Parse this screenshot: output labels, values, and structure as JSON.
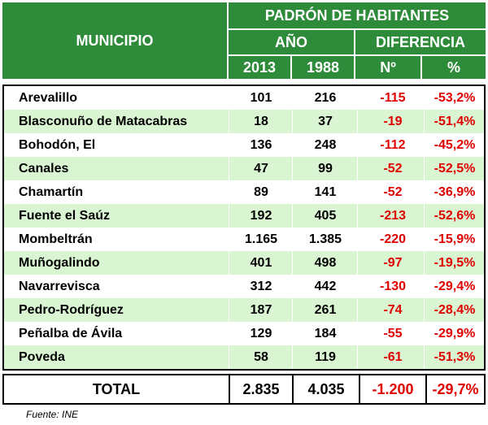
{
  "header": {
    "municipio": "MUNICIPIO",
    "padron": "PADRÓN DE HABITANTES",
    "anio": "AÑO",
    "diferencia": "DIFERENCIA",
    "y2013": "2013",
    "y1988": "1988",
    "num": "Nº",
    "pct": "%"
  },
  "rows": [
    {
      "name": "Arevalillo",
      "v2013": "101",
      "v1988": "216",
      "diff": "-115",
      "pct": "-53,2%"
    },
    {
      "name": "Blasconuño de Matacabras",
      "v2013": "18",
      "v1988": "37",
      "diff": "-19",
      "pct": "-51,4%"
    },
    {
      "name": "Bohodón, El",
      "v2013": "136",
      "v1988": "248",
      "diff": "-112",
      "pct": "-45,2%"
    },
    {
      "name": "Canales",
      "v2013": "47",
      "v1988": "99",
      "diff": "-52",
      "pct": "-52,5%"
    },
    {
      "name": "Chamartín",
      "v2013": "89",
      "v1988": "141",
      "diff": "-52",
      "pct": "-36,9%"
    },
    {
      "name": "Fuente el Saúz",
      "v2013": "192",
      "v1988": "405",
      "diff": "-213",
      "pct": "-52,6%"
    },
    {
      "name": "Mombeltrán",
      "v2013": "1.165",
      "v1988": "1.385",
      "diff": "-220",
      "pct": "-15,9%"
    },
    {
      "name": "Muñogalindo",
      "v2013": "401",
      "v1988": "498",
      "diff": "-97",
      "pct": "-19,5%"
    },
    {
      "name": "Navarrevisca",
      "v2013": "312",
      "v1988": "442",
      "diff": "-130",
      "pct": "-29,4%"
    },
    {
      "name": "Pedro-Rodríguez",
      "v2013": "187",
      "v1988": "261",
      "diff": "-74",
      "pct": "-28,4%"
    },
    {
      "name": "Peñalba de Ávila",
      "v2013": "129",
      "v1988": "184",
      "diff": "-55",
      "pct": "-29,9%"
    },
    {
      "name": "Poveda",
      "v2013": "58",
      "v1988": "119",
      "diff": "-61",
      "pct": "-51,3%"
    }
  ],
  "total": {
    "label": "TOTAL",
    "v2013": "2.835",
    "v1988": "4.035",
    "diff": "-1.200",
    "pct": "-29,7%"
  },
  "footer": "Fuente: INE",
  "colors": {
    "header_green": "#2e8b3a",
    "alt_row": "#d9f5d2",
    "negative_red": "#e00000"
  }
}
